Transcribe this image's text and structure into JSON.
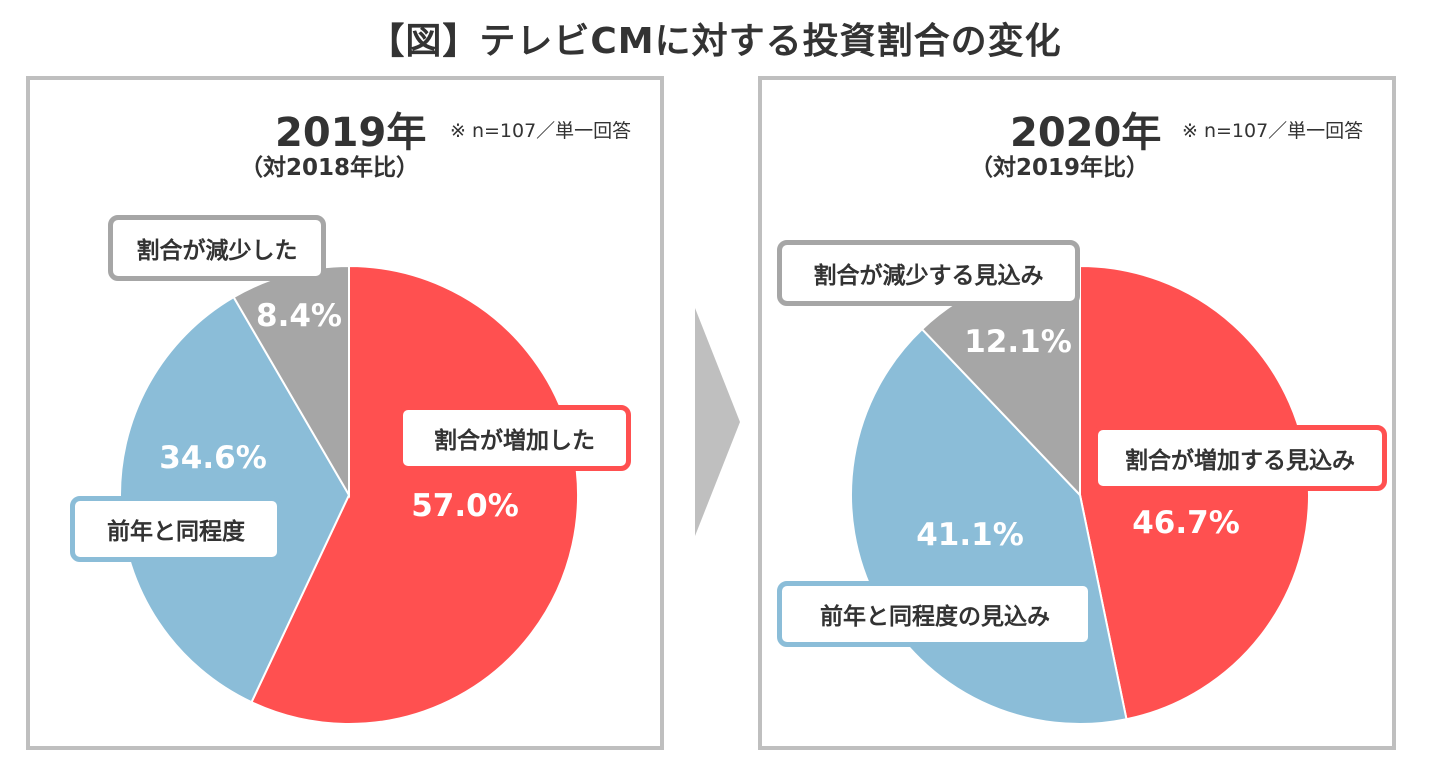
{
  "title": "【図】テレビCMに対する投資割合の変化",
  "colors": {
    "increase": "#ff5050",
    "same": "#8bbdd8",
    "decrease": "#a6a6a6"
  },
  "chart_data": [
    {
      "type": "pie",
      "year_label": "2019年",
      "comparison": "（対2018年比）",
      "note": "※ n=107／単一回答",
      "slices": [
        {
          "label": "割合が増加した",
          "value": 57.0,
          "value_label": "57.0%",
          "color": "#ff5050"
        },
        {
          "label": "前年と同程度",
          "value": 34.6,
          "value_label": "34.6%",
          "color": "#8bbdd8"
        },
        {
          "label": "割合が減少した",
          "value": 8.4,
          "value_label": "8.4%",
          "color": "#a6a6a6"
        }
      ]
    },
    {
      "type": "pie",
      "year_label": "2020年",
      "comparison": "（対2019年比）",
      "note": "※ n=107／単一回答",
      "slices": [
        {
          "label": "割合が増加する見込み",
          "value": 46.7,
          "value_label": "46.7%",
          "color": "#ff5050"
        },
        {
          "label": "前年と同程度の見込み",
          "value": 41.1,
          "value_label": "41.1%",
          "color": "#8bbdd8"
        },
        {
          "label": "割合が減少する見込み",
          "value": 12.1,
          "value_label": "12.1%",
          "color": "#a6a6a6"
        }
      ]
    }
  ]
}
